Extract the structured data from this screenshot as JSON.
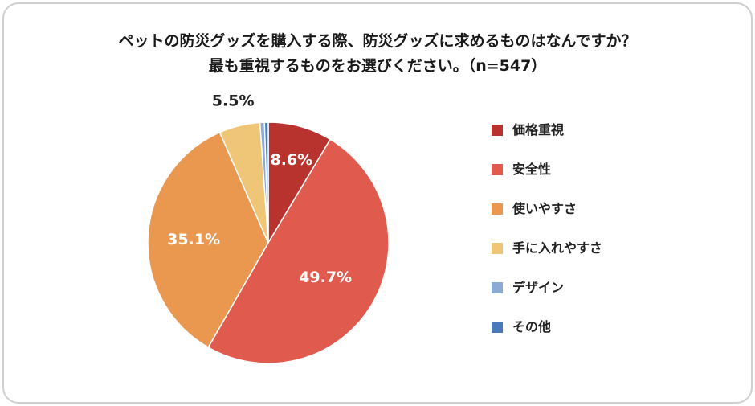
{
  "title": {
    "line1": "ペットの防災グッズを購入する際、防災グッズに求めるものはなんですか？",
    "line2": "最も重視するものをお選びください。（n=547）"
  },
  "chart_data": {
    "type": "pie",
    "categories": [
      "価格重視",
      "安全性",
      "使いやすさ",
      "手に入れやすさ",
      "デザイン",
      "その他"
    ],
    "values": [
      8.6,
      49.7,
      35.1,
      5.5,
      0.6,
      0.5
    ],
    "labels": [
      "8.6%",
      "49.7%",
      "35.1%",
      "5.5%",
      "",
      ""
    ],
    "colors": [
      "#b8322e",
      "#e05a4e",
      "#ea9750",
      "#efc677",
      "#89abd6",
      "#4a78b8"
    ],
    "legend_position": "right"
  }
}
